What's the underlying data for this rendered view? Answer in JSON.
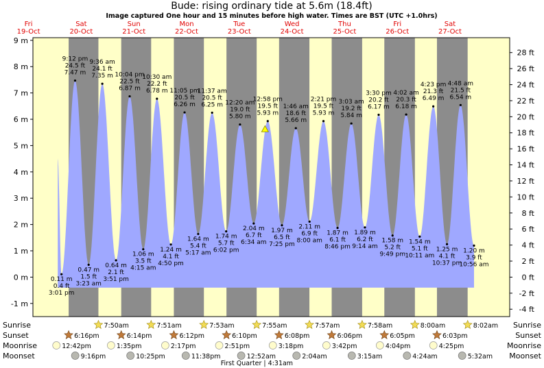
{
  "title": "Bude: rising  ordinary tide at 5.6m (18.4ft)",
  "subtitle": "Image captured One hour and 15 minutes before high water. Times are BST (UTC +1.0hrs)",
  "colors": {
    "water": "#9fa8ff",
    "day_bg": "#ffffc8",
    "night_bg": "#8c8c8c",
    "date_red": "#e00000"
  },
  "chart_data": {
    "type": "area",
    "title": "Bude: rising  ordinary tide at 5.6m (18.4ft)",
    "subtitle": "Image captured One hour and 15 minutes before high water. Times are BST (UTC +1.0hrs)",
    "x_unit": "hours from 00:00 Fri 19-Oct (BST)",
    "ylim_m": [
      -1.5,
      9.1
    ],
    "yticks_m": [
      -1,
      0,
      1,
      2,
      3,
      4,
      5,
      6,
      7,
      8,
      9
    ],
    "yticks_ft": [
      -4,
      -2,
      0,
      2,
      4,
      6,
      8,
      10,
      12,
      14,
      16,
      18,
      20,
      22,
      24,
      26,
      28
    ],
    "days": [
      {
        "name": "Fri",
        "date": "19-Oct"
      },
      {
        "name": "Sat",
        "date": "20-Oct"
      },
      {
        "name": "Sun",
        "date": "21-Oct"
      },
      {
        "name": "Mon",
        "date": "22-Oct"
      },
      {
        "name": "Tue",
        "date": "23-Oct"
      },
      {
        "name": "Wed",
        "date": "24-Oct"
      },
      {
        "name": "Thu",
        "date": "25-Oct"
      },
      {
        "name": "Fri",
        "date": "26-Oct"
      },
      {
        "name": "Sat",
        "date": "27-Oct"
      }
    ],
    "series": [
      {
        "kind": "tide",
        "extremes": [
          {
            "t": 15.02,
            "h": 0.11,
            "m": "0.11 m",
            "ft": "0.4 ft",
            "time": "3:01 pm",
            "type": "low"
          },
          {
            "t": 21.2,
            "h": 7.47,
            "m": "7.47 m",
            "ft": "24.5 ft",
            "time": "9:12 pm",
            "type": "high"
          },
          {
            "t": 27.38,
            "h": 0.47,
            "m": "0.47 m",
            "ft": "1.5 ft",
            "time": "3:23 am",
            "type": "low"
          },
          {
            "t": 33.6,
            "h": 7.35,
            "m": "7.35 m",
            "ft": "24.1 ft",
            "time": "9:36 am",
            "type": "high"
          },
          {
            "t": 39.85,
            "h": 0.64,
            "m": "0.64 m",
            "ft": "2.1 ft",
            "time": "3:51 pm",
            "type": "low"
          },
          {
            "t": 46.07,
            "h": 6.87,
            "m": "6.87 m",
            "ft": "22.5 ft",
            "time": "10:04 pm",
            "type": "high"
          },
          {
            "t": 52.25,
            "h": 1.06,
            "m": "1.06 m",
            "ft": "3.5 ft",
            "time": "4:15 am",
            "type": "low"
          },
          {
            "t": 58.5,
            "h": 6.78,
            "m": "6.78 m",
            "ft": "22.2 ft",
            "time": "10:30 am",
            "type": "high"
          },
          {
            "t": 64.83,
            "h": 1.24,
            "m": "1.24 m",
            "ft": "4.1 ft",
            "time": "4:50 pm",
            "type": "low"
          },
          {
            "t": 71.08,
            "h": 6.26,
            "m": "6.26 m",
            "ft": "20.5 ft",
            "time": "11:05 pm",
            "type": "high"
          },
          {
            "t": 77.28,
            "h": 1.64,
            "m": "1.64 m",
            "ft": "5.4 ft",
            "time": "5:17 am",
            "type": "low"
          },
          {
            "t": 83.62,
            "h": 6.25,
            "m": "6.25 m",
            "ft": "20.5 ft",
            "time": "11:37 am",
            "type": "high"
          },
          {
            "t": 90.03,
            "h": 1.74,
            "m": "1.74 m",
            "ft": "5.7 ft",
            "time": "6:02 pm",
            "type": "low"
          },
          {
            "t": 96.33,
            "h": 5.8,
            "m": "5.80 m",
            "ft": "19.0 ft",
            "time": "12:20 am",
            "type": "high"
          },
          {
            "t": 102.57,
            "h": 2.04,
            "m": "2.04 m",
            "ft": "6.7 ft",
            "time": "6:34 am",
            "type": "low"
          },
          {
            "t": 108.97,
            "h": 5.93,
            "m": "5.93 m",
            "ft": "19.5 ft",
            "time": "12:58 pm",
            "type": "high"
          },
          {
            "t": 115.42,
            "h": 1.97,
            "m": "1.97 m",
            "ft": "6.5 ft",
            "time": "7:25 pm",
            "type": "low"
          },
          {
            "t": 121.77,
            "h": 5.66,
            "m": "5.66 m",
            "ft": "18.6 ft",
            "time": "1:46 am",
            "type": "high"
          },
          {
            "t": 128.0,
            "h": 2.11,
            "m": "2.11 m",
            "ft": "6.9 ft",
            "time": "8:00 am",
            "type": "low"
          },
          {
            "t": 134.35,
            "h": 5.93,
            "m": "5.93 m",
            "ft": "19.5 ft",
            "time": "2:21 pm",
            "type": "high"
          },
          {
            "t": 140.77,
            "h": 1.87,
            "m": "1.87 m",
            "ft": "6.1 ft",
            "time": "8:46 pm",
            "type": "low"
          },
          {
            "t": 147.05,
            "h": 5.84,
            "m": "5.84 m",
            "ft": "19.2 ft",
            "time": "3:03 am",
            "type": "high"
          },
          {
            "t": 153.23,
            "h": 1.89,
            "m": "1.89 m",
            "ft": "6.2 ft",
            "time": "9:14 am",
            "type": "low"
          },
          {
            "t": 159.5,
            "h": 6.17,
            "m": "6.17 m",
            "ft": "20.2 ft",
            "time": "3:30 pm",
            "type": "high"
          },
          {
            "t": 165.82,
            "h": 1.58,
            "m": "1.58 m",
            "ft": "5.2 ft",
            "time": "9:49 pm",
            "type": "low"
          },
          {
            "t": 172.03,
            "h": 6.18,
            "m": "6.18 m",
            "ft": "20.3 ft",
            "time": "4:02 am",
            "type": "high"
          },
          {
            "t": 178.18,
            "h": 1.54,
            "m": "1.54 m",
            "ft": "5.1 ft",
            "time": "10:11 am",
            "type": "low"
          },
          {
            "t": 184.38,
            "h": 6.49,
            "m": "6.49 m",
            "ft": "21.3 ft",
            "time": "4:23 pm",
            "type": "high"
          },
          {
            "t": 190.62,
            "h": 1.25,
            "m": "1.25 m",
            "ft": "4.1 ft",
            "time": "10:37 pm",
            "type": "low"
          },
          {
            "t": 196.8,
            "h": 6.54,
            "m": "6.54 m",
            "ft": "21.5 ft",
            "time": "4:48 am",
            "type": "high"
          },
          {
            "t": 202.93,
            "h": 1.2,
            "m": "1.20 m",
            "ft": "3.9 ft",
            "time": "10:56 am",
            "type": "low"
          }
        ]
      }
    ],
    "current_time_h": 107.73,
    "current_level_m": 5.6,
    "sunrise": [
      {
        "t": 31.83,
        "time": "7:50am"
      },
      {
        "t": 55.85,
        "time": "7:51am"
      },
      {
        "t": 79.88,
        "time": "7:53am"
      },
      {
        "t": 103.92,
        "time": "7:55am"
      },
      {
        "t": 127.95,
        "time": "7:57am"
      },
      {
        "t": 151.97,
        "time": "7:58am"
      },
      {
        "t": 176.0,
        "time": "8:00am"
      },
      {
        "t": 200.03,
        "time": "8:02am"
      }
    ],
    "sunset": [
      {
        "t": 18.27,
        "time": "6:16pm"
      },
      {
        "t": 42.23,
        "time": "6:14pm"
      },
      {
        "t": 66.2,
        "time": "6:12pm"
      },
      {
        "t": 90.17,
        "time": "6:10pm"
      },
      {
        "t": 114.13,
        "time": "6:08pm"
      },
      {
        "t": 138.1,
        "time": "6:06pm"
      },
      {
        "t": 162.08,
        "time": "6:05pm"
      },
      {
        "t": 186.05,
        "time": "6:03pm"
      }
    ],
    "moonrise": [
      {
        "t": 12.7,
        "time": "12:42pm"
      },
      {
        "t": 37.58,
        "time": "1:35pm"
      },
      {
        "t": 62.28,
        "time": "2:17pm"
      },
      {
        "t": 86.85,
        "time": "2:51pm"
      },
      {
        "t": 111.3,
        "time": "3:18pm"
      },
      {
        "t": 135.7,
        "time": "3:42pm"
      },
      {
        "t": 160.07,
        "time": "4:04pm"
      },
      {
        "t": 184.42,
        "time": "4:25pm"
      }
    ],
    "moonset": [
      {
        "t": 21.27,
        "time": "9:16pm"
      },
      {
        "t": 46.42,
        "time": "10:25pm"
      },
      {
        "t": 71.63,
        "time": "11:38pm"
      },
      {
        "t": 96.87,
        "time": "12:52am"
      },
      {
        "t": 122.07,
        "time": "2:04am"
      },
      {
        "t": 147.25,
        "time": "3:15am"
      },
      {
        "t": 172.4,
        "time": "4:24am"
      },
      {
        "t": 197.53,
        "time": "5:32am"
      }
    ],
    "row_labels": {
      "sunrise": "Sunrise",
      "sunset": "Sunset",
      "moonrise": "Moonrise",
      "moonset": "Moonset"
    },
    "moon_phase_note": "First Quarter | 4:31am"
  }
}
